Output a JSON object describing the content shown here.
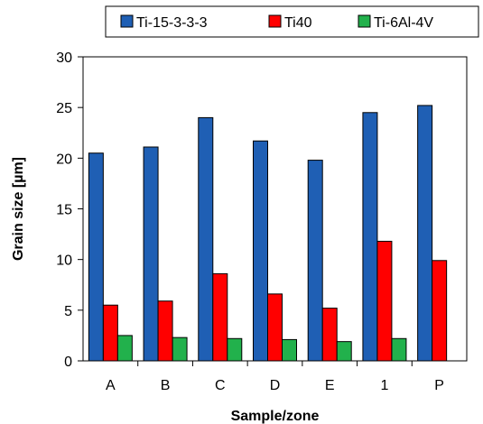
{
  "chart_data": {
    "type": "bar",
    "title": "",
    "xlabel": "Sample/zone",
    "ylabel": "Grain size [µm]",
    "categories": [
      "A",
      "B",
      "C",
      "D",
      "E",
      "1",
      "P"
    ],
    "ylim": [
      0,
      30
    ],
    "yticks": [
      0,
      5,
      10,
      15,
      20,
      25,
      30
    ],
    "grid": false,
    "legend": "top",
    "series": [
      {
        "name": "Ti-15-3-3-3",
        "color": "#1f5fb4",
        "values": [
          20.5,
          21.1,
          24.0,
          21.7,
          19.8,
          24.5,
          25.2
        ]
      },
      {
        "name": "Ti40",
        "color": "#ff0000",
        "values": [
          5.5,
          5.9,
          8.6,
          6.6,
          5.2,
          11.8,
          9.9
        ]
      },
      {
        "name": "Ti-6Al-4V",
        "color": "#22b14c",
        "values": [
          2.5,
          2.3,
          2.2,
          2.1,
          1.9,
          2.2,
          0
        ]
      }
    ]
  }
}
